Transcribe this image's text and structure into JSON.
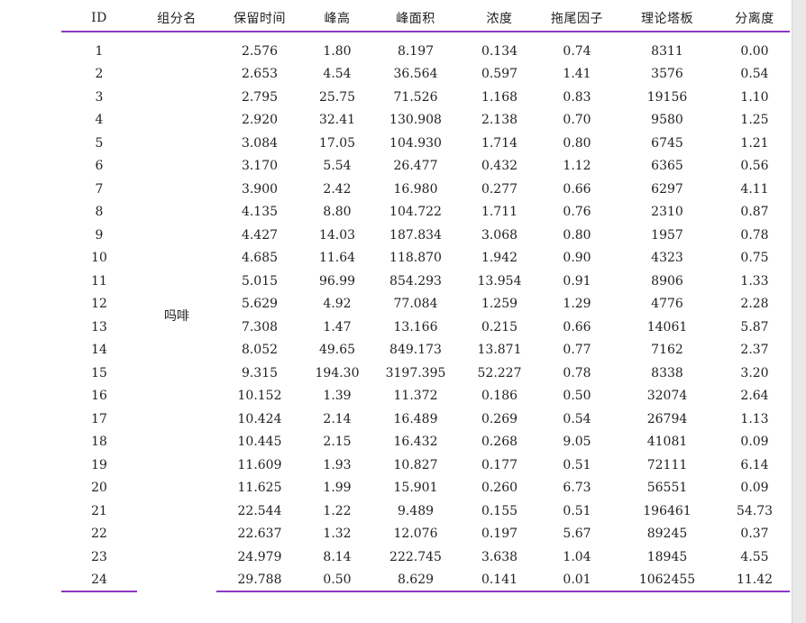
{
  "table": {
    "headers": [
      "ID",
      "组分名",
      "保留时间",
      "峰高",
      "峰面积",
      "浓度",
      "拖尾因子",
      "理论塔板",
      "分离度"
    ],
    "compound_name": "吗啡",
    "rows": [
      [
        "1",
        "2.576",
        "1.80",
        "8.197",
        "0.134",
        "0.74",
        "8311",
        "0.00"
      ],
      [
        "2",
        "2.653",
        "4.54",
        "36.564",
        "0.597",
        "1.41",
        "3576",
        "0.54"
      ],
      [
        "3",
        "2.795",
        "25.75",
        "71.526",
        "1.168",
        "0.83",
        "19156",
        "1.10"
      ],
      [
        "4",
        "2.920",
        "32.41",
        "130.908",
        "2.138",
        "0.70",
        "9580",
        "1.25"
      ],
      [
        "5",
        "3.084",
        "17.05",
        "104.930",
        "1.714",
        "0.80",
        "6745",
        "1.21"
      ],
      [
        "6",
        "3.170",
        "5.54",
        "26.477",
        "0.432",
        "1.12",
        "6365",
        "0.56"
      ],
      [
        "7",
        "3.900",
        "2.42",
        "16.980",
        "0.277",
        "0.66",
        "6297",
        "4.11"
      ],
      [
        "8",
        "4.135",
        "8.80",
        "104.722",
        "1.711",
        "0.76",
        "2310",
        "0.87"
      ],
      [
        "9",
        "4.427",
        "14.03",
        "187.834",
        "3.068",
        "0.80",
        "1957",
        "0.78"
      ],
      [
        "10",
        "4.685",
        "11.64",
        "118.870",
        "1.942",
        "0.90",
        "4323",
        "0.75"
      ],
      [
        "11",
        "5.015",
        "96.99",
        "854.293",
        "13.954",
        "0.91",
        "8906",
        "1.33"
      ],
      [
        "12",
        "5.629",
        "4.92",
        "77.084",
        "1.259",
        "1.29",
        "4776",
        "2.28"
      ],
      [
        "13",
        "7.308",
        "1.47",
        "13.166",
        "0.215",
        "0.66",
        "14061",
        "5.87"
      ],
      [
        "14",
        "8.052",
        "49.65",
        "849.173",
        "13.871",
        "0.77",
        "7162",
        "2.37"
      ],
      [
        "15",
        "9.315",
        "194.30",
        "3197.395",
        "52.227",
        "0.78",
        "8338",
        "3.20"
      ],
      [
        "16",
        "10.152",
        "1.39",
        "11.372",
        "0.186",
        "0.50",
        "32074",
        "2.64"
      ],
      [
        "17",
        "10.424",
        "2.14",
        "16.489",
        "0.269",
        "0.54",
        "26794",
        "1.13"
      ],
      [
        "18",
        "10.445",
        "2.15",
        "16.432",
        "0.268",
        "9.05",
        "41081",
        "0.09"
      ],
      [
        "19",
        "11.609",
        "1.93",
        "10.827",
        "0.177",
        "0.51",
        "72111",
        "6.14"
      ],
      [
        "20",
        "11.625",
        "1.99",
        "15.901",
        "0.260",
        "6.73",
        "56551",
        "0.09"
      ],
      [
        "21",
        "22.544",
        "1.22",
        "9.489",
        "0.155",
        "0.51",
        "196461",
        "54.73"
      ],
      [
        "22",
        "22.637",
        "1.32",
        "12.076",
        "0.197",
        "5.67",
        "89245",
        "0.37"
      ],
      [
        "23",
        "24.979",
        "8.14",
        "222.745",
        "3.638",
        "1.04",
        "18945",
        "4.55"
      ],
      [
        "24",
        "29.788",
        "0.50",
        "8.629",
        "0.141",
        "0.01",
        "1062455",
        "11.42"
      ]
    ]
  },
  "colors": {
    "rule": "#8e37c4",
    "text": "#222222",
    "page": "#ffffff",
    "backdrop": "#e9e9e9"
  }
}
